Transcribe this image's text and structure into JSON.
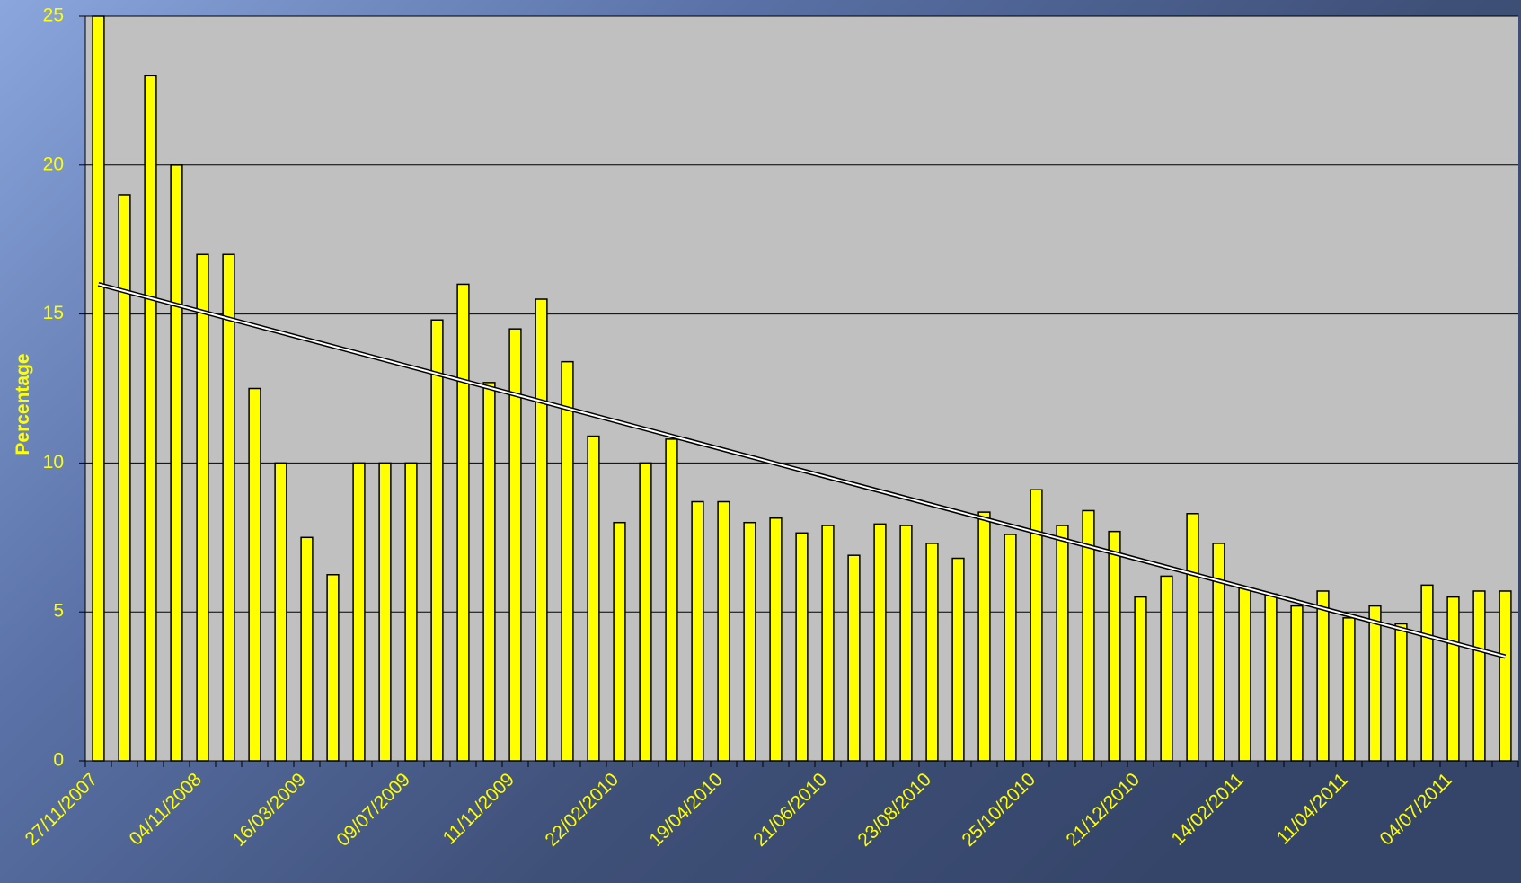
{
  "chart_data": {
    "type": "bar",
    "y_label": "Percentage",
    "categories": [
      "27/11/2007",
      null,
      null,
      null,
      "04/11/2008",
      null,
      null,
      null,
      "16/03/2009",
      null,
      null,
      null,
      "09/07/2009",
      null,
      null,
      null,
      "11/11/2009",
      null,
      null,
      null,
      "22/02/2010",
      null,
      null,
      null,
      "19/04/2010",
      null,
      null,
      null,
      "21/06/2010",
      null,
      null,
      null,
      "23/08/2010",
      null,
      null,
      null,
      "25/10/2010",
      null,
      null,
      null,
      "21/12/2010",
      null,
      null,
      null,
      "14/02/2011",
      null,
      null,
      null,
      "11/04/2011",
      null,
      null,
      null,
      "04/07/2011",
      null,
      null
    ],
    "values": [
      25,
      19,
      23,
      20,
      17,
      17,
      12.5,
      10,
      7.5,
      6.25,
      10,
      10,
      10,
      14.8,
      16,
      12.7,
      14.5,
      15.5,
      13.4,
      10.9,
      8,
      10,
      10.8,
      8.7,
      8.7,
      8,
      8.15,
      7.65,
      7.9,
      6.9,
      7.95,
      7.9,
      7.3,
      6.8,
      8.35,
      7.6,
      9.1,
      7.9,
      8.4,
      7.7,
      5.5,
      6.2,
      8.3,
      7.3,
      5.8,
      5.6,
      5.2,
      5.7,
      4.8,
      5.2,
      4.6,
      5.9,
      5.5,
      5.7,
      5.7
    ],
    "color": "#ffff00",
    "trendline": {
      "color": "#ffffff",
      "values": [
        16,
        3.5
      ]
    },
    "ylim": [
      0,
      25
    ],
    "yticks": [
      0,
      5,
      10,
      15,
      20,
      25
    ],
    "grid": true
  }
}
